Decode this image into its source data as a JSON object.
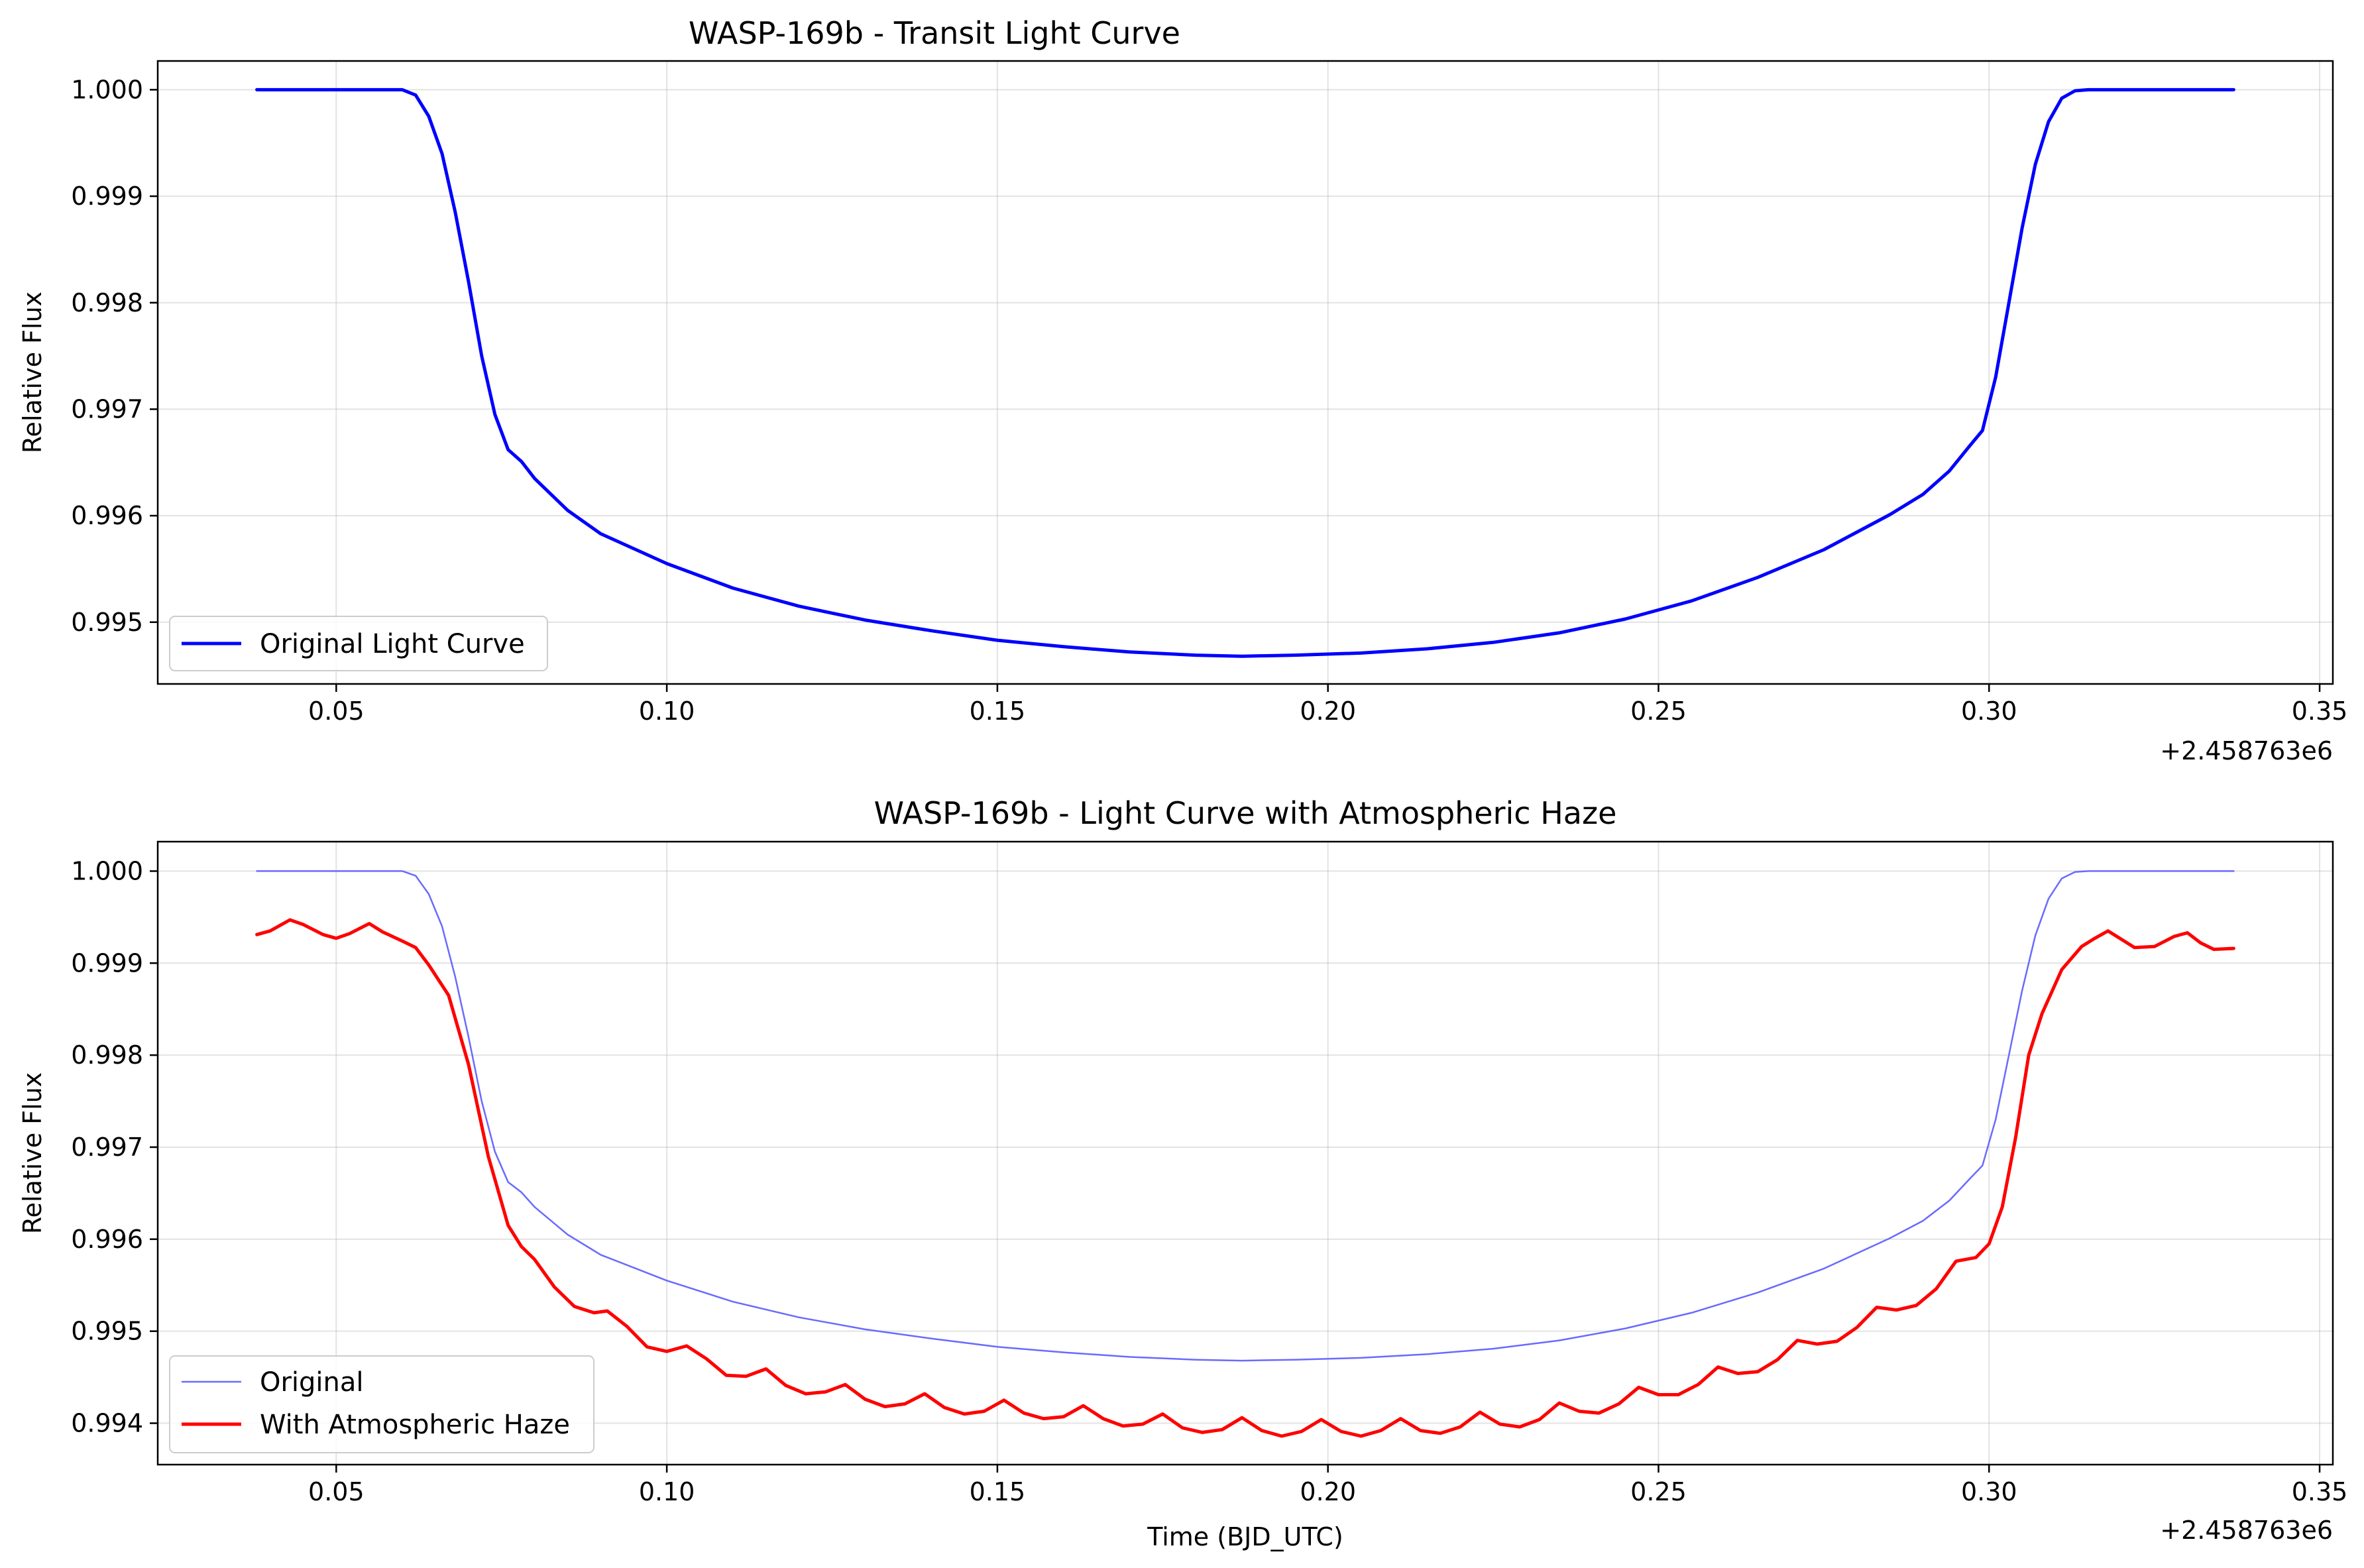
{
  "chart_data": [
    {
      "type": "line",
      "title": "WASP-169b - Transit Light Curve",
      "xlabel": "",
      "ylabel": "Relative Flux",
      "x_offset_label": "+2.458763e6",
      "xlim": [
        0.023,
        0.352
      ],
      "ylim": [
        0.99442,
        1.00027
      ],
      "xticks": [
        "0.05",
        "0.10",
        "0.15",
        "0.20",
        "0.25",
        "0.30",
        "0.35"
      ],
      "yticks": [
        "0.995",
        "0.996",
        "0.997",
        "0.998",
        "0.999",
        "1.000"
      ],
      "grid": true,
      "legend_position": "lower-left",
      "series": [
        {
          "name": "Original Light Curve",
          "color": "#0000ff",
          "x": [
            0.038,
            0.05,
            0.06,
            0.062,
            0.064,
            0.066,
            0.068,
            0.07,
            0.072,
            0.074,
            0.076,
            0.078,
            0.08,
            0.085,
            0.09,
            0.1,
            0.11,
            0.12,
            0.13,
            0.14,
            0.15,
            0.16,
            0.17,
            0.18,
            0.187,
            0.195,
            0.205,
            0.215,
            0.225,
            0.235,
            0.245,
            0.255,
            0.265,
            0.275,
            0.285,
            0.29,
            0.294,
            0.297,
            0.299,
            0.301,
            0.303,
            0.305,
            0.307,
            0.309,
            0.311,
            0.313,
            0.315,
            0.325,
            0.337
          ],
          "y": [
            1.0,
            1.0,
            1.0,
            0.99995,
            0.99975,
            0.9994,
            0.99885,
            0.9982,
            0.9975,
            0.99695,
            0.99662,
            0.99651,
            0.99635,
            0.99605,
            0.99583,
            0.99555,
            0.99532,
            0.99515,
            0.99502,
            0.99492,
            0.99483,
            0.99477,
            0.99472,
            0.99469,
            0.99468,
            0.99469,
            0.99471,
            0.99475,
            0.99481,
            0.9949,
            0.99503,
            0.9952,
            0.99542,
            0.99568,
            0.99601,
            0.9962,
            0.99642,
            0.99665,
            0.9968,
            0.9973,
            0.998,
            0.9987,
            0.9993,
            0.9997,
            0.99992,
            0.99999,
            1.0,
            1.0,
            1.0
          ]
        }
      ]
    },
    {
      "type": "line",
      "title": "WASP-169b - Light Curve with Atmospheric Haze",
      "xlabel": "Time (BJD_UTC)",
      "ylabel": "Relative Flux",
      "x_offset_label": "+2.458763e6",
      "xlim": [
        0.023,
        0.352
      ],
      "ylim": [
        0.99355,
        1.00032
      ],
      "xticks": [
        "0.05",
        "0.10",
        "0.15",
        "0.20",
        "0.25",
        "0.30",
        "0.35"
      ],
      "yticks": [
        "0.994",
        "0.995",
        "0.996",
        "0.997",
        "0.998",
        "0.999",
        "1.000"
      ],
      "grid": true,
      "legend_position": "lower-left",
      "series": [
        {
          "name": "Original",
          "color": "#6a6aff",
          "x": [
            0.038,
            0.05,
            0.06,
            0.062,
            0.064,
            0.066,
            0.068,
            0.07,
            0.072,
            0.074,
            0.076,
            0.078,
            0.08,
            0.085,
            0.09,
            0.1,
            0.11,
            0.12,
            0.13,
            0.14,
            0.15,
            0.16,
            0.17,
            0.18,
            0.187,
            0.195,
            0.205,
            0.215,
            0.225,
            0.235,
            0.245,
            0.255,
            0.265,
            0.275,
            0.285,
            0.29,
            0.294,
            0.297,
            0.299,
            0.301,
            0.303,
            0.305,
            0.307,
            0.309,
            0.311,
            0.313,
            0.315,
            0.325,
            0.337
          ],
          "y": [
            1.0,
            1.0,
            1.0,
            0.99995,
            0.99975,
            0.9994,
            0.99885,
            0.9982,
            0.9975,
            0.99695,
            0.99662,
            0.99651,
            0.99635,
            0.99605,
            0.99583,
            0.99555,
            0.99532,
            0.99515,
            0.99502,
            0.99492,
            0.99483,
            0.99477,
            0.99472,
            0.99469,
            0.99468,
            0.99469,
            0.99471,
            0.99475,
            0.99481,
            0.9949,
            0.99503,
            0.9952,
            0.99542,
            0.99568,
            0.99601,
            0.9962,
            0.99642,
            0.99665,
            0.9968,
            0.9973,
            0.998,
            0.9987,
            0.9993,
            0.9997,
            0.99992,
            0.99999,
            1.0,
            1.0,
            1.0
          ]
        },
        {
          "name": "With Atmospheric Haze",
          "color": "#ff0000",
          "x": [
            0.038,
            0.04,
            0.043,
            0.045,
            0.048,
            0.05,
            0.052,
            0.055,
            0.057,
            0.06,
            0.062,
            0.064,
            0.067,
            0.07,
            0.073,
            0.076,
            0.078,
            0.08,
            0.083,
            0.086,
            0.089,
            0.091,
            0.094,
            0.097,
            0.1,
            0.103,
            0.106,
            0.109,
            0.112,
            0.115,
            0.118,
            0.121,
            0.124,
            0.127,
            0.13,
            0.133,
            0.136,
            0.139,
            0.142,
            0.145,
            0.148,
            0.151,
            0.154,
            0.157,
            0.16,
            0.163,
            0.166,
            0.169,
            0.172,
            0.175,
            0.178,
            0.181,
            0.184,
            0.187,
            0.19,
            0.193,
            0.196,
            0.199,
            0.202,
            0.205,
            0.208,
            0.211,
            0.214,
            0.217,
            0.22,
            0.223,
            0.226,
            0.229,
            0.232,
            0.235,
            0.238,
            0.241,
            0.244,
            0.247,
            0.25,
            0.253,
            0.256,
            0.259,
            0.262,
            0.265,
            0.268,
            0.271,
            0.274,
            0.277,
            0.28,
            0.283,
            0.286,
            0.289,
            0.292,
            0.295,
            0.298,
            0.3,
            0.302,
            0.304,
            0.306,
            0.308,
            0.311,
            0.314,
            0.316,
            0.318,
            0.32,
            0.322,
            0.325,
            0.328,
            0.33,
            0.332,
            0.334,
            0.337
          ],
          "y": [
            0.99931,
            0.99935,
            0.99947,
            0.99942,
            0.99931,
            0.99927,
            0.99932,
            0.99943,
            0.99934,
            0.99924,
            0.99917,
            0.99898,
            0.99865,
            0.9979,
            0.9969,
            0.99615,
            0.99592,
            0.99578,
            0.99548,
            0.99527,
            0.9952,
            0.99522,
            0.99505,
            0.99483,
            0.99478,
            0.99484,
            0.9947,
            0.99452,
            0.99451,
            0.99459,
            0.99441,
            0.99432,
            0.99434,
            0.99442,
            0.99426,
            0.99418,
            0.99421,
            0.99432,
            0.99417,
            0.9941,
            0.99413,
            0.99425,
            0.99411,
            0.99405,
            0.99407,
            0.99419,
            0.99405,
            0.99397,
            0.99399,
            0.9941,
            0.99395,
            0.9939,
            0.99393,
            0.99406,
            0.99392,
            0.99386,
            0.99391,
            0.99404,
            0.99391,
            0.99386,
            0.99392,
            0.99405,
            0.99392,
            0.99389,
            0.99396,
            0.99412,
            0.99399,
            0.99396,
            0.99404,
            0.99422,
            0.99413,
            0.99411,
            0.99421,
            0.99439,
            0.99431,
            0.99431,
            0.99442,
            0.99461,
            0.99454,
            0.99456,
            0.99469,
            0.9949,
            0.99486,
            0.99489,
            0.99504,
            0.99526,
            0.99523,
            0.99528,
            0.99546,
            0.99576,
            0.9958,
            0.99595,
            0.99635,
            0.9971,
            0.998,
            0.99845,
            0.99893,
            0.99918,
            0.99927,
            0.99935,
            0.99926,
            0.99917,
            0.99918,
            0.99929,
            0.99933,
            0.99922,
            0.99915,
            0.99916
          ]
        }
      ]
    }
  ]
}
